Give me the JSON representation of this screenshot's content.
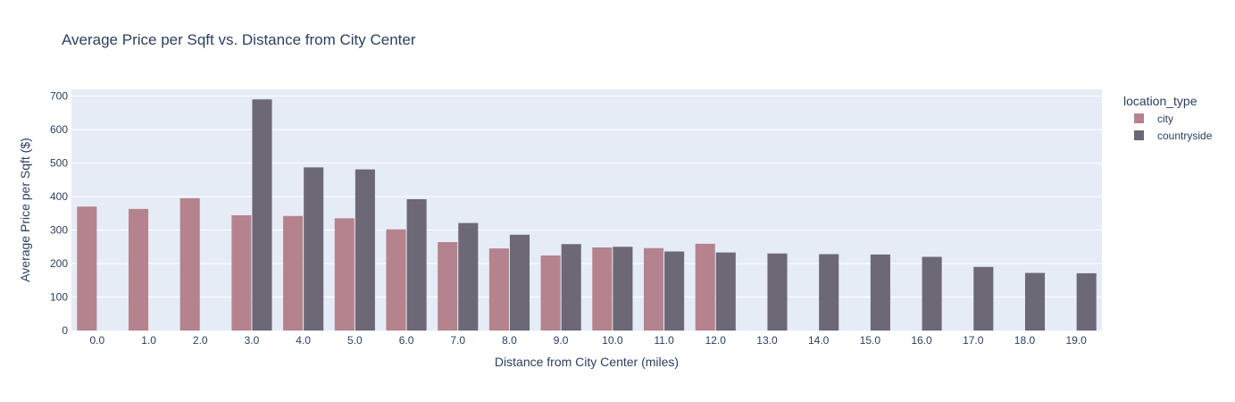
{
  "chart_data": {
    "type": "bar",
    "title": "Average Price per Sqft vs. Distance from City Center",
    "xlabel": "Distance from City Center (miles)",
    "ylabel": "Average Price per Sqft ($)",
    "categories": [
      "0.0",
      "1.0",
      "2.0",
      "3.0",
      "4.0",
      "5.0",
      "6.0",
      "7.0",
      "8.0",
      "9.0",
      "10.0",
      "11.0",
      "12.0",
      "13.0",
      "14.0",
      "15.0",
      "16.0",
      "17.0",
      "18.0",
      "19.0"
    ],
    "ylim": [
      0,
      720
    ],
    "yticks": [
      0,
      100,
      200,
      300,
      400,
      500,
      600,
      700
    ],
    "grid": true,
    "legend_title": "location_type",
    "legend_position": "top-right",
    "series": [
      {
        "name": "city",
        "color": "#b5838d",
        "values": [
          370,
          363,
          395,
          344,
          342,
          335,
          302,
          264,
          245,
          224,
          248,
          246,
          259,
          null,
          null,
          null,
          null,
          null,
          null,
          null
        ]
      },
      {
        "name": "countryside",
        "color": "#6d6875",
        "values": [
          null,
          null,
          null,
          690,
          487,
          481,
          392,
          321,
          286,
          258,
          250,
          236,
          233,
          230,
          228,
          227,
          220,
          190,
          172,
          171
        ]
      }
    ]
  }
}
